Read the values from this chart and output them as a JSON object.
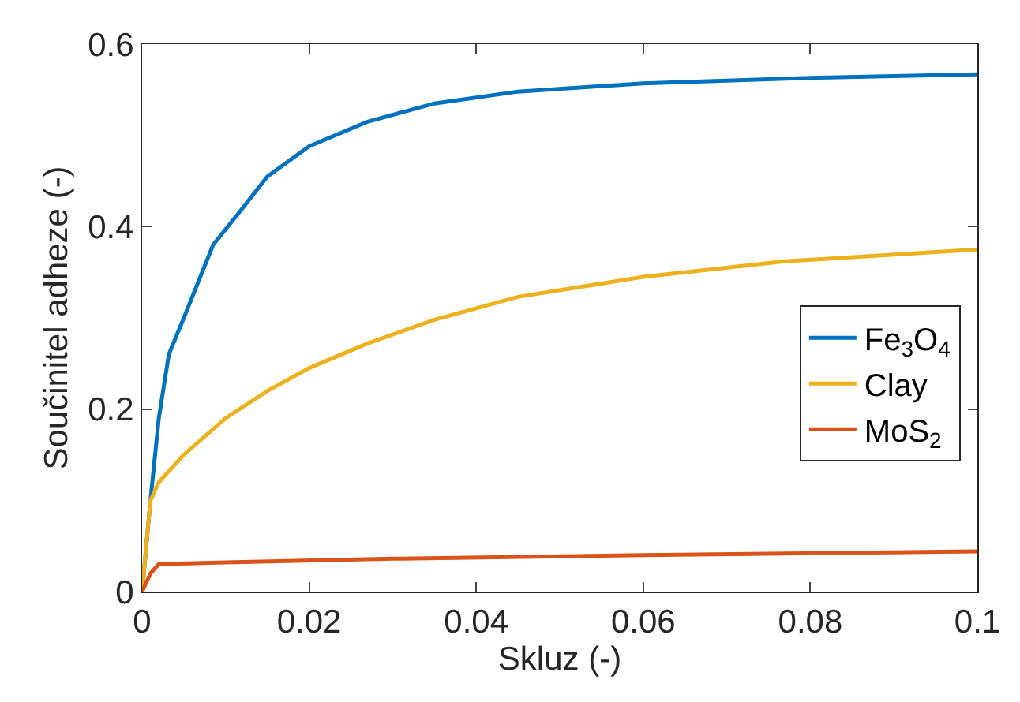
{
  "chart_data": {
    "type": "line",
    "xlabel": "Skluz (-)",
    "ylabel": "Součinitel adheze (-)",
    "xlim": [
      0,
      0.1
    ],
    "xticks": [
      0,
      0.02,
      0.04,
      0.06,
      0.08,
      0.1
    ],
    "ylim": [
      0,
      0.6
    ],
    "yticks": [
      0,
      0.2,
      0.4,
      0.6
    ],
    "legend": "right",
    "series": [
      {
        "name": "Fe$_{3}$O$_{4}$",
        "color": "#0072bd",
        "x": [
          0,
          0.001,
          0.002,
          0.0032,
          0.005,
          0.0085,
          0.012,
          0.015,
          0.02,
          0.027,
          0.035,
          0.045,
          0.06,
          0.08,
          0.1
        ],
        "values": [
          0,
          0.1,
          0.19,
          0.26,
          0.3,
          0.38,
          0.42,
          0.455,
          0.488,
          0.515,
          0.535,
          0.548,
          0.557,
          0.563,
          0.567
        ]
      },
      {
        "name": "Clay",
        "color": "#edb120",
        "x": [
          0,
          0.001,
          0.002,
          0.005,
          0.01,
          0.015,
          0.02,
          0.027,
          0.035,
          0.045,
          0.06,
          0.077,
          0.1
        ],
        "values": [
          0,
          0.1,
          0.12,
          0.15,
          0.19,
          0.22,
          0.245,
          0.272,
          0.298,
          0.323,
          0.345,
          0.362,
          0.375
        ]
      },
      {
        "name": "MoS$_{2}$",
        "color": "#d95319",
        "x": [
          0,
          0.001,
          0.002,
          0.01,
          0.03,
          0.06,
          0.1
        ],
        "values": [
          0,
          0.02,
          0.03,
          0.032,
          0.036,
          0.04,
          0.044
        ]
      }
    ]
  }
}
